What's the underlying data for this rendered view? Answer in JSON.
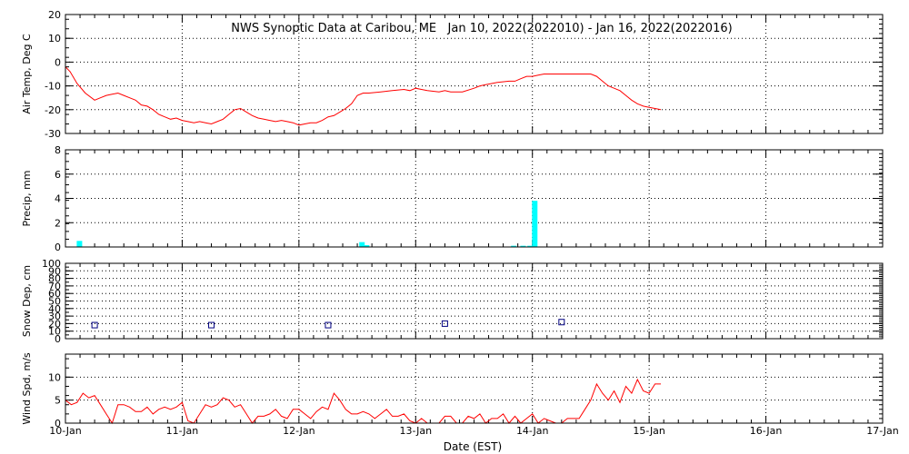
{
  "chart_data": {
    "type": "multi-panel",
    "title": "NWS Synoptic Data at Caribou, ME   Jan 10, 2022(2022010) - Jan 16, 2022(2022016)",
    "x_axis": {
      "label": "Date (EST)",
      "ticks": [
        "10-Jan",
        "11-Jan",
        "12-Jan",
        "13-Jan",
        "14-Jan",
        "15-Jan",
        "16-Jan",
        "17-Jan"
      ],
      "range_days": [
        0,
        7
      ]
    },
    "colors": {
      "line": "#ff0000",
      "bar": "#00ffff",
      "marker": "#000080",
      "frame": "#000000"
    },
    "panels": [
      {
        "id": "air_temp",
        "type": "line",
        "ylabel": "Air Temp, Deg C",
        "ylim": [
          -30,
          20
        ],
        "yticks": [
          -30,
          -20,
          -10,
          0,
          10,
          20
        ],
        "grid": true,
        "series": [
          {
            "x": [
              0.0,
              0.04,
              0.1,
              0.17,
              0.25,
              0.3,
              0.35,
              0.4,
              0.45,
              0.5,
              0.55,
              0.6,
              0.65,
              0.7,
              0.75,
              0.8,
              0.85,
              0.9,
              0.95,
              1.0,
              1.05,
              1.1,
              1.15,
              1.2,
              1.25,
              1.3,
              1.35,
              1.4,
              1.45,
              1.5,
              1.55,
              1.6,
              1.65,
              1.7,
              1.75,
              1.8,
              1.85,
              1.9,
              1.95,
              2.0,
              2.05,
              2.1,
              2.15,
              2.2,
              2.25,
              2.3,
              2.35,
              2.4,
              2.45,
              2.5,
              2.55,
              2.6,
              2.7,
              2.8,
              2.9,
              2.95,
              3.0,
              3.05,
              3.1,
              3.2,
              3.25,
              3.3,
              3.4,
              3.5,
              3.55,
              3.6,
              3.7,
              3.8,
              3.85,
              3.9,
              3.95,
              4.0,
              4.05,
              4.1,
              4.2,
              4.3,
              4.4,
              4.5,
              4.55,
              4.6,
              4.65,
              4.7,
              4.75,
              4.8,
              4.85,
              4.9,
              4.95,
              5.0,
              5.05,
              5.1
            ],
            "y": [
              -2,
              -4,
              -9,
              -13,
              -16,
              -15,
              -14,
              -13.5,
              -13,
              -14,
              -15,
              -16,
              -18,
              -18.5,
              -20,
              -22,
              -23,
              -24,
              -23.5,
              -24.5,
              -25,
              -25.5,
              -25,
              -25.5,
              -26,
              -25,
              -24,
              -22,
              -20,
              -19.5,
              -21,
              -22.5,
              -23.5,
              -24,
              -24.5,
              -25,
              -24.5,
              -25,
              -25.5,
              -26.5,
              -26,
              -25.5,
              -25.5,
              -24.5,
              -23,
              -22.5,
              -21,
              -19.5,
              -17.5,
              -14,
              -13,
              -13,
              -12.5,
              -12,
              -11.5,
              -12,
              -11,
              -11.5,
              -12,
              -12.5,
              -12,
              -12.5,
              -12.5,
              -11,
              -10,
              -9.5,
              -8.5,
              -8,
              -8,
              -7,
              -6,
              -6,
              -5.5,
              -5,
              -5,
              -5,
              -5,
              -5,
              -6,
              -8,
              -10,
              -11,
              -12,
              -14,
              -16,
              -17.5,
              -18.5,
              -19,
              -19.5,
              -20
            ]
          }
        ]
      },
      {
        "id": "precip",
        "type": "bar",
        "ylabel": "Precip, mm",
        "ylim": [
          0,
          8
        ],
        "yticks": [
          0,
          2,
          4,
          6,
          8
        ],
        "grid": true,
        "series": [
          {
            "x": [
              0.12,
              2.54,
              2.58,
              3.84,
              3.92,
              3.98,
              4.02
            ],
            "values": [
              0.5,
              0.4,
              0.15,
              0.1,
              0.1,
              0.1,
              3.8
            ]
          }
        ]
      },
      {
        "id": "snow_depth",
        "type": "scatter",
        "ylabel": "Snow Dep, cm",
        "ylim": [
          0,
          100
        ],
        "yticks": [
          0,
          10,
          20,
          30,
          40,
          50,
          60,
          70,
          80,
          90,
          100
        ],
        "grid": true,
        "series": [
          {
            "x": [
              0.25,
              1.25,
              2.25,
              3.25,
              4.25
            ],
            "y": [
              18,
              18,
              18,
              20,
              22
            ]
          }
        ]
      },
      {
        "id": "wind_speed",
        "type": "line",
        "ylabel": "Wind Spd, m/s",
        "ylim": [
          0,
          15
        ],
        "yticks": [
          0,
          5,
          10
        ],
        "grid": true,
        "series": [
          {
            "x": [
              0.0,
              0.05,
              0.1,
              0.15,
              0.2,
              0.25,
              0.3,
              0.35,
              0.4,
              0.45,
              0.5,
              0.55,
              0.6,
              0.65,
              0.7,
              0.75,
              0.8,
              0.85,
              0.9,
              0.95,
              1.0,
              1.05,
              1.1,
              1.15,
              1.2,
              1.25,
              1.3,
              1.35,
              1.4,
              1.45,
              1.5,
              1.55,
              1.6,
              1.65,
              1.7,
              1.75,
              1.8,
              1.85,
              1.9,
              1.95,
              2.0,
              2.05,
              2.1,
              2.15,
              2.2,
              2.25,
              2.3,
              2.35,
              2.4,
              2.45,
              2.5,
              2.55,
              2.6,
              2.65,
              2.7,
              2.75,
              2.8,
              2.85,
              2.9,
              2.95,
              3.0,
              3.05,
              3.1,
              3.15,
              3.2,
              3.25,
              3.3,
              3.35,
              3.4,
              3.45,
              3.5,
              3.55,
              3.6,
              3.65,
              3.7,
              3.75,
              3.8,
              3.85,
              3.9,
              3.95,
              4.0,
              4.05,
              4.1,
              4.15,
              4.2,
              4.25,
              4.3,
              4.35,
              4.4,
              4.45,
              4.5,
              4.55,
              4.6,
              4.65,
              4.7,
              4.75,
              4.8,
              4.85,
              4.9,
              4.95,
              5.0,
              5.05,
              5.1
            ],
            "y": [
              5,
              4,
              4.5,
              6.5,
              5.5,
              6,
              4,
              2,
              0,
              4,
              4,
              3.5,
              2.5,
              2.5,
              3.5,
              2,
              3,
              3.5,
              3,
              3.5,
              4.5,
              0.5,
              0,
              2,
              4,
              3.5,
              4,
              5.5,
              5,
              3.5,
              4,
              2,
              0,
              1.5,
              1.5,
              2,
              3,
              1.5,
              1,
              3,
              3,
              2,
              1,
              2.5,
              3.5,
              3,
              6.5,
              5,
              3,
              2,
              2,
              2.5,
              2,
              1,
              2,
              3,
              1.5,
              1.5,
              2,
              0.5,
              0,
              1,
              0,
              0,
              0,
              1.5,
              1.5,
              0,
              0,
              1.5,
              1,
              2,
              0,
              1,
              1,
              2,
              0,
              1.5,
              0,
              1,
              2,
              0,
              1,
              0.5,
              0,
              0,
              1,
              1,
              1,
              3,
              5,
              8.5,
              6.5,
              5,
              7,
              4.5,
              8,
              6.5,
              9.5,
              7,
              6.5,
              8.5,
              8.5
            ]
          }
        ]
      }
    ]
  }
}
